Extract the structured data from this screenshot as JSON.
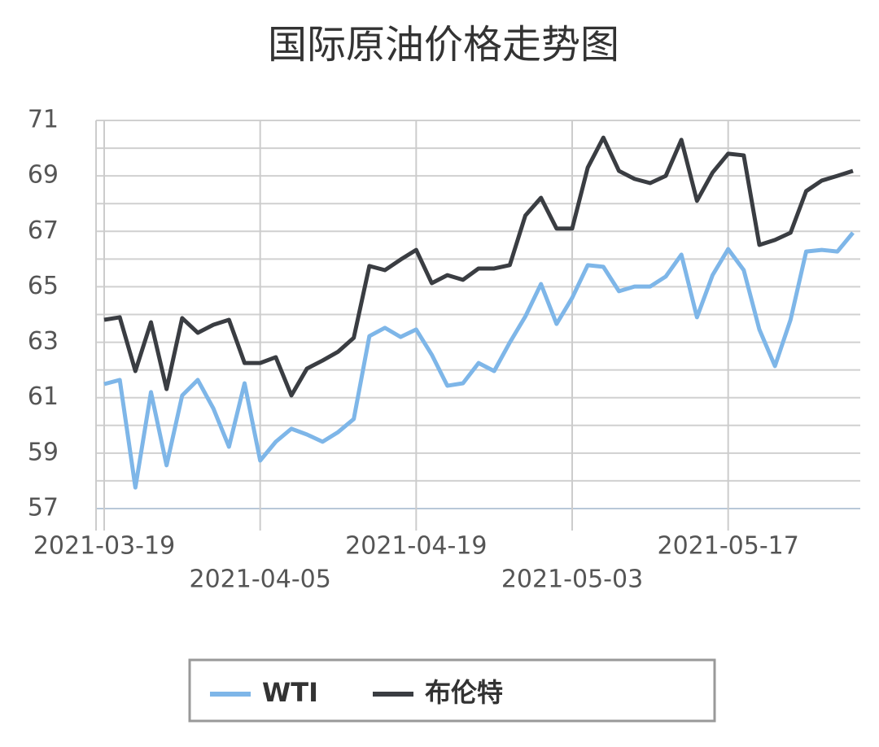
{
  "chart_data": {
    "type": "line",
    "title": "国际原油价格走势图",
    "categories": [
      "2021-03-19",
      null,
      null,
      null,
      null,
      null,
      null,
      null,
      null,
      null,
      "2021-04-05",
      null,
      null,
      null,
      null,
      null,
      null,
      null,
      null,
      null,
      "2021-04-19",
      null,
      null,
      null,
      null,
      null,
      null,
      null,
      null,
      null,
      "2021-05-03",
      null,
      null,
      null,
      null,
      null,
      null,
      null,
      null,
      null,
      "2021-05-17",
      null,
      null,
      null,
      null,
      null,
      null,
      null,
      null
    ],
    "series": [
      {
        "name": "WTI",
        "color": "#7eb6e8",
        "values": [
          61.49,
          61.64,
          57.76,
          61.2,
          58.56,
          61.08,
          61.64,
          60.61,
          59.23,
          61.52,
          58.73,
          59.41,
          59.88,
          59.67,
          59.41,
          59.76,
          60.23,
          63.22,
          63.52,
          63.19,
          63.46,
          62.55,
          61.43,
          61.52,
          62.25,
          61.96,
          62.99,
          63.93,
          65.1,
          63.66,
          64.6,
          65.78,
          65.72,
          64.84,
          65.01,
          65.01,
          65.37,
          66.16,
          63.9,
          65.42,
          66.36,
          65.6,
          63.46,
          62.14,
          63.81,
          66.27,
          66.33,
          66.27,
          66.95
        ]
      },
      {
        "name": "布伦特",
        "color": "#3a3d42",
        "values": [
          63.81,
          63.9,
          61.96,
          63.72,
          61.31,
          63.87,
          63.34,
          63.63,
          63.81,
          62.25,
          62.25,
          62.46,
          61.08,
          62.05,
          62.34,
          62.66,
          63.16,
          65.75,
          65.6,
          65.98,
          66.33,
          65.13,
          65.42,
          65.25,
          65.66,
          65.66,
          65.78,
          67.57,
          68.21,
          67.1,
          67.1,
          69.3,
          70.38,
          69.18,
          68.89,
          68.74,
          69.0,
          70.3,
          68.1,
          69.12,
          69.8,
          69.74,
          66.51,
          66.69,
          66.95,
          68.45,
          68.83,
          69.0,
          69.18
        ]
      }
    ],
    "ylim": [
      57,
      71
    ],
    "yticks": [
      57,
      59,
      61,
      63,
      65,
      67,
      69,
      71
    ],
    "grid": true
  }
}
